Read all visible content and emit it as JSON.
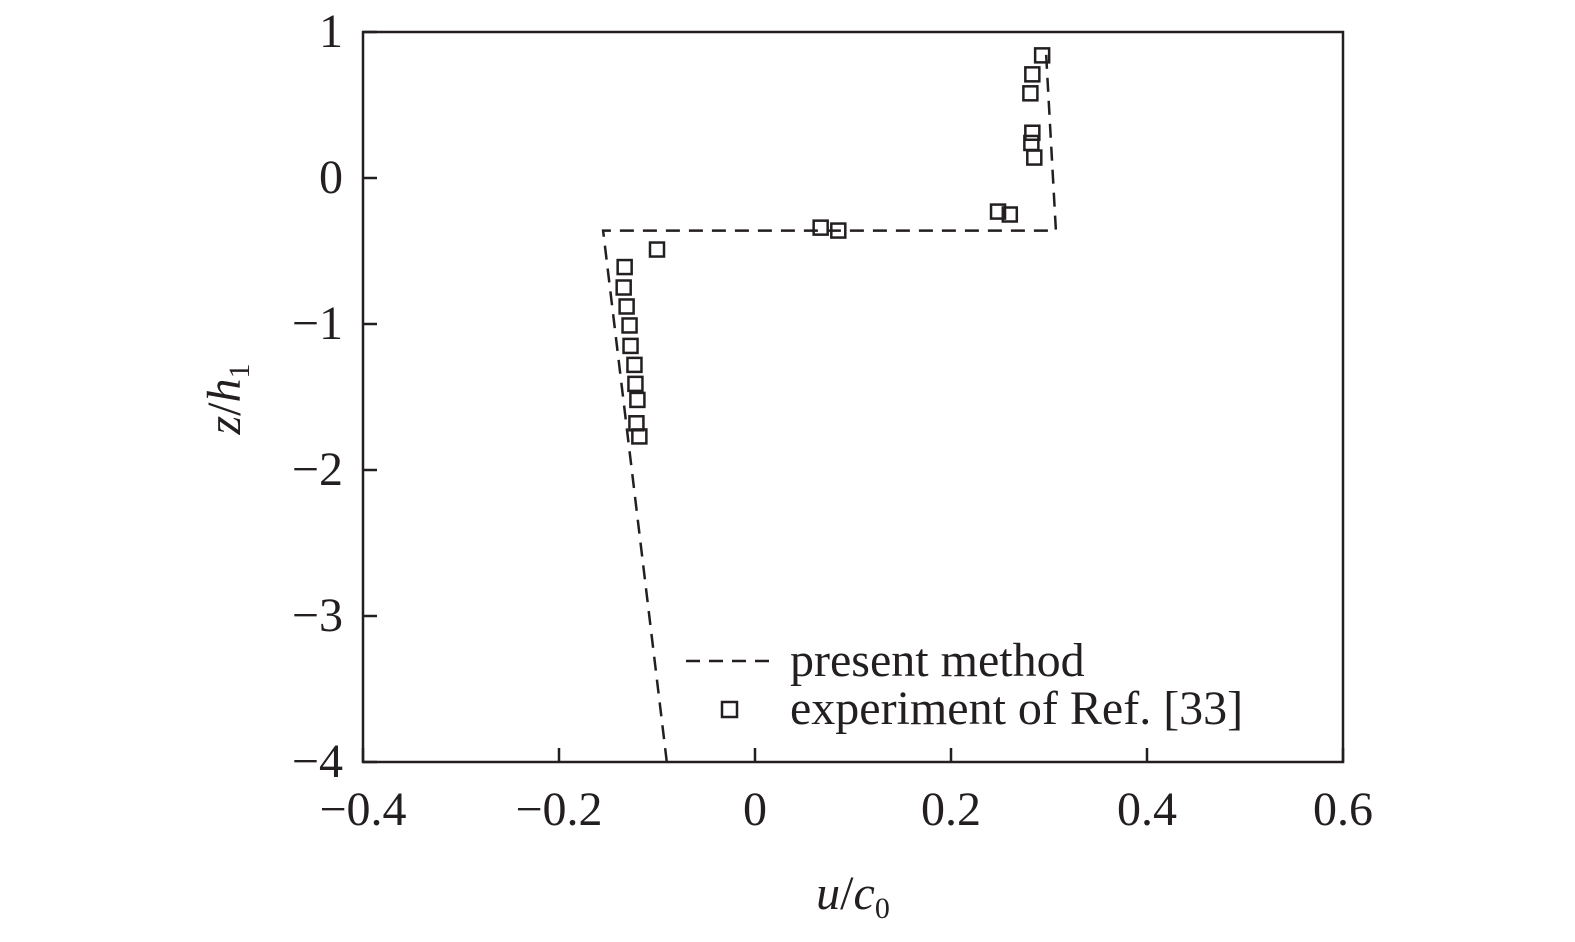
{
  "chart_data": {
    "type": "line",
    "title": "",
    "xlabel": {
      "var1": "u",
      "slash": "/",
      "var2": "c",
      "sub": "0"
    },
    "ylabel": {
      "var1": "z",
      "slash": "/",
      "var2": "h",
      "sub": "1"
    },
    "xlim": [
      -0.4,
      0.6
    ],
    "ylim": [
      -4,
      1
    ],
    "xticks": [
      -0.4,
      -0.2,
      0,
      0.2,
      0.4,
      0.6
    ],
    "xtick_labels": [
      "−0.4",
      "−0.2",
      "0",
      "0.2",
      "0.4",
      "0.6"
    ],
    "yticks": [
      1,
      0,
      -1,
      -2,
      -3,
      -4
    ],
    "ytick_labels": [
      "1",
      "0",
      "−1",
      "−2",
      "−3",
      "−4"
    ],
    "grid": false,
    "legend_position": "bottom-right",
    "series": [
      {
        "name": "present method",
        "style": "dashed-line",
        "x": [
          -0.09,
          -0.155,
          0.307,
          0.297
        ],
        "y": [
          -4.0,
          -0.36,
          -0.36,
          0.85
        ]
      },
      {
        "name": "experiment of Ref. [33]",
        "style": "open-square-markers",
        "x": [
          0.293,
          0.283,
          0.281,
          0.283,
          0.282,
          0.285,
          0.248,
          0.26,
          0.067,
          0.085,
          -0.1,
          -0.133,
          -0.134,
          -0.131,
          -0.128,
          -0.127,
          -0.123,
          -0.122,
          -0.12,
          -0.121,
          -0.118
        ],
        "y": [
          0.84,
          0.71,
          0.58,
          0.31,
          0.24,
          0.14,
          -0.23,
          -0.25,
          -0.34,
          -0.36,
          -0.49,
          -0.61,
          -0.75,
          -0.88,
          -1.01,
          -1.15,
          -1.28,
          -1.41,
          -1.52,
          -1.68,
          -1.77
        ]
      }
    ]
  }
}
